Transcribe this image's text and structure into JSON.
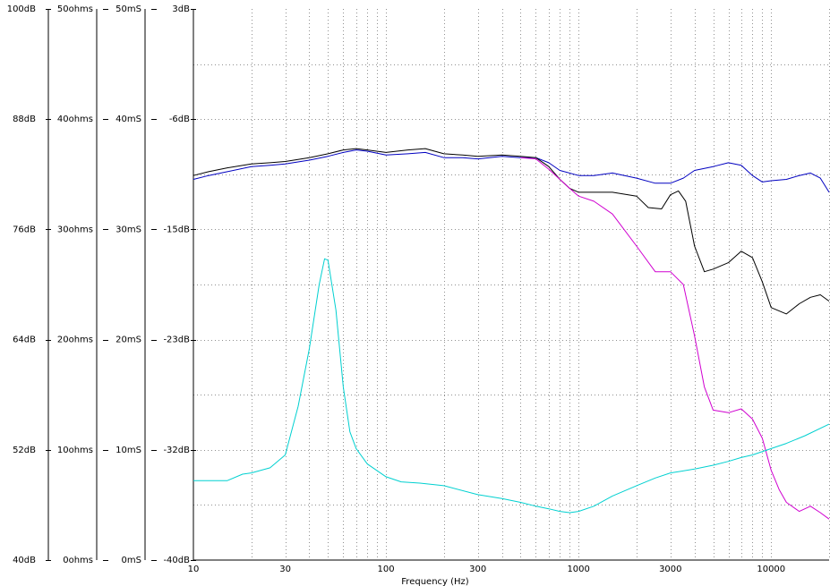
{
  "chart_data": {
    "type": "line",
    "xlabel": "Frequency (Hz)",
    "xscale": "log",
    "xlim": [
      10,
      20000
    ],
    "x_ticks": [
      "10",
      "30",
      "100",
      "300",
      "1000",
      "3000",
      "10000"
    ],
    "x_tick_values": [
      10,
      30,
      100,
      300,
      1000,
      3000,
      10000
    ],
    "y_axes": [
      {
        "ticks": [
          "100dB",
          "88dB",
          "76dB",
          "64dB",
          "52dB",
          "40dB"
        ]
      },
      {
        "ticks": [
          "50ohms",
          "40ohms",
          "30ohms",
          "20ohms",
          "10ohms",
          "0ohms"
        ]
      },
      {
        "ticks": [
          "50mS",
          "40mS",
          "30mS",
          "20mS",
          "10mS",
          "0mS"
        ]
      },
      {
        "ticks": [
          "3dB",
          "-6dB",
          "-15dB",
          "-23dB",
          "-32dB",
          "-40dB"
        ]
      }
    ],
    "ylim": [
      -40,
      3
    ],
    "grid": true,
    "series": [
      {
        "color": "#0000c0",
        "x": [
          10,
          12,
          15,
          20,
          25,
          30,
          40,
          50,
          60,
          70,
          80,
          100,
          130,
          160,
          200,
          250,
          300,
          400,
          500,
          600,
          700,
          800,
          1000,
          1200,
          1500,
          2000,
          2500,
          3000,
          3500,
          4000,
          5000,
          6000,
          7000,
          8000,
          9000,
          10000,
          12000,
          14000,
          16000,
          18000,
          20000
        ],
        "y": [
          -10.3,
          -10.0,
          -9.7,
          -9.3,
          -9.2,
          -9.1,
          -8.8,
          -8.5,
          -8.2,
          -8.0,
          -8.1,
          -8.4,
          -8.3,
          -8.2,
          -8.6,
          -8.6,
          -8.7,
          -8.5,
          -8.6,
          -8.6,
          -9.0,
          -9.6,
          -10.0,
          -10.0,
          -9.8,
          -10.2,
          -10.6,
          -10.6,
          -10.2,
          -9.6,
          -9.3,
          -9.0,
          -9.2,
          -10.0,
          -10.5,
          -10.4,
          -10.3,
          -10.0,
          -9.8,
          -10.2,
          -11.3
        ]
      },
      {
        "color": "#000000",
        "x": [
          10,
          12,
          15,
          20,
          25,
          30,
          40,
          50,
          60,
          70,
          80,
          100,
          130,
          160,
          200,
          250,
          300,
          400,
          500,
          600,
          700,
          800,
          900,
          1000,
          1200,
          1500,
          2000,
          2300,
          2700,
          3000,
          3300,
          3600,
          4000,
          4500,
          5000,
          6000,
          7000,
          8000,
          9000,
          10000,
          12000,
          14000,
          16000,
          18000,
          20000
        ],
        "y": [
          -10.0,
          -9.7,
          -9.4,
          -9.1,
          -9.0,
          -8.9,
          -8.6,
          -8.3,
          -8.0,
          -7.9,
          -8.0,
          -8.2,
          -8.0,
          -7.9,
          -8.3,
          -8.4,
          -8.5,
          -8.4,
          -8.5,
          -8.6,
          -9.3,
          -10.3,
          -11.0,
          -11.3,
          -11.3,
          -11.3,
          -11.6,
          -12.5,
          -12.6,
          -11.5,
          -11.2,
          -12.0,
          -15.5,
          -17.5,
          -17.3,
          -16.8,
          -15.9,
          -16.4,
          -18.3,
          -20.3,
          -20.8,
          -20.0,
          -19.5,
          -19.3,
          -19.8
        ]
      },
      {
        "color": "#d000d0",
        "x": [
          500,
          600,
          700,
          800,
          900,
          1000,
          1200,
          1500,
          2000,
          2500,
          3000,
          3500,
          4000,
          4500,
          5000,
          6000,
          7000,
          8000,
          9000,
          10000,
          11000,
          12000,
          14000,
          16000,
          18000,
          20000
        ],
        "y": [
          -8.6,
          -8.7,
          -9.5,
          -10.3,
          -11.0,
          -11.6,
          -12.0,
          -13.0,
          -15.5,
          -17.5,
          -17.5,
          -18.5,
          -22.5,
          -26.5,
          -28.3,
          -28.5,
          -28.2,
          -29.0,
          -30.5,
          -33.0,
          -34.5,
          -35.5,
          -36.2,
          -35.8,
          -36.3,
          -36.8
        ]
      },
      {
        "color": "#00d0d0",
        "x": [
          10,
          15,
          18,
          20,
          25,
          30,
          35,
          40,
          45,
          48,
          50,
          55,
          60,
          65,
          70,
          80,
          100,
          120,
          150,
          200,
          300,
          400,
          500,
          600,
          700,
          800,
          900,
          1000,
          1200,
          1500,
          2000,
          2500,
          3000,
          4000,
          5000,
          6000,
          7000,
          8000,
          10000,
          12000,
          15000,
          20000
        ],
        "y": [
          -33.8,
          -33.8,
          -33.3,
          -33.2,
          -32.8,
          -31.8,
          -28.0,
          -23.5,
          -18.5,
          -16.5,
          -16.6,
          -20.5,
          -26.5,
          -30.0,
          -31.3,
          -32.5,
          -33.5,
          -33.9,
          -34.0,
          -34.2,
          -34.9,
          -35.2,
          -35.5,
          -35.8,
          -36.0,
          -36.2,
          -36.3,
          -36.2,
          -35.8,
          -35.0,
          -34.2,
          -33.6,
          -33.2,
          -32.9,
          -32.6,
          -32.3,
          -32.0,
          -31.8,
          -31.3,
          -30.9,
          -30.3,
          -29.4
        ]
      }
    ]
  }
}
